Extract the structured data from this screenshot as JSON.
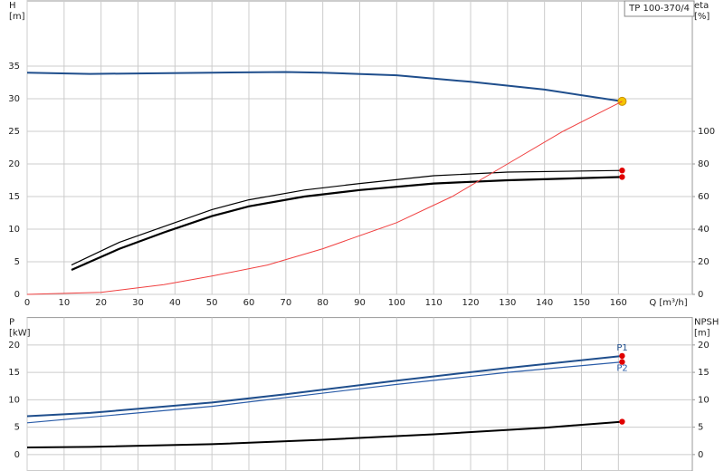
{
  "chart_data": [
    {
      "type": "line",
      "title": "TP 100-370/4",
      "xlabel": "Q [m³/h]",
      "ylabel": [
        "H",
        "[m]"
      ],
      "y2label": [
        "eta",
        "[%]"
      ],
      "xlim": [
        0,
        180
      ],
      "xticks": [
        0,
        10,
        20,
        30,
        40,
        50,
        60,
        70,
        80,
        90,
        100,
        110,
        120,
        130,
        140,
        150,
        160
      ],
      "ylim": [
        0,
        45
      ],
      "yticks": [
        0,
        5,
        10,
        15,
        20,
        25,
        30,
        35
      ],
      "y2lim": [
        0,
        180
      ],
      "y2ticks": [
        0,
        20,
        40,
        60,
        80,
        100
      ],
      "grid": true,
      "series": [
        {
          "color": "#1f4e8c",
          "width": 2,
          "marker": "#f5c400",
          "x": [
            0,
            17,
            50,
            70,
            80,
            100,
            120,
            140,
            161
          ],
          "values": [
            34,
            33.8,
            34.0,
            34.1,
            34.0,
            33.6,
            32.6,
            31.4,
            29.6
          ]
        },
        {
          "color": "#000000",
          "width": 1.2,
          "marker": "#e00000",
          "axis": "y2",
          "x": [
            12,
            25,
            40,
            50,
            60,
            75,
            90,
            110,
            130,
            161
          ],
          "values": [
            18,
            32,
            44,
            52,
            58,
            64,
            68,
            72.8,
            75,
            76
          ]
        },
        {
          "color": "#000000",
          "width": 2.2,
          "marker": "#e00000",
          "axis": "y2",
          "x": [
            12,
            17,
            25,
            37,
            50,
            60,
            75,
            90,
            110,
            130,
            161
          ],
          "values": [
            15,
            20,
            28,
            38,
            48,
            54,
            60,
            64,
            68,
            70,
            72
          ]
        },
        {
          "color": "#f04040",
          "width": 1,
          "x": [
            0,
            20,
            37,
            50,
            65,
            80,
            100,
            115,
            130,
            145,
            161
          ],
          "values": [
            0,
            0.3,
            1.5,
            2.8,
            4.5,
            7,
            11,
            15,
            20,
            25,
            29.6
          ]
        }
      ]
    },
    {
      "type": "line",
      "ylabel": [
        "P",
        "[kW]"
      ],
      "y2label": [
        "NPSH",
        "[m]"
      ],
      "xlim": [
        0,
        180
      ],
      "xticks": [
        0,
        10,
        20,
        30,
        40,
        50,
        60,
        70,
        80,
        90,
        100,
        110,
        120,
        130,
        140,
        150,
        160
      ],
      "xtick_labels": false,
      "ylim": [
        -3,
        25
      ],
      "yticks": [
        0,
        5,
        10,
        15,
        20
      ],
      "y2lim": [
        -3,
        25
      ],
      "y2ticks": [
        0,
        5,
        10,
        15,
        20
      ],
      "grid": true,
      "series": [
        {
          "name": "P1",
          "color": "#1f4e8c",
          "width": 2,
          "marker": "#e00000",
          "x": [
            0,
            17,
            50,
            70,
            100,
            130,
            161
          ],
          "values": [
            7,
            7.6,
            9.5,
            11,
            13.5,
            15.8,
            18
          ]
        },
        {
          "name": "P2",
          "color": "#2a5ca8",
          "width": 1.2,
          "marker": "#e00000",
          "x": [
            0,
            50,
            100,
            130,
            161
          ],
          "values": [
            5.8,
            8.8,
            12.8,
            15,
            16.9
          ]
        },
        {
          "color": "#000000",
          "width": 2,
          "marker": "#e00000",
          "axis": "y2",
          "x": [
            0,
            17,
            50,
            80,
            110,
            140,
            161
          ],
          "values": [
            1.3,
            1.4,
            1.9,
            2.7,
            3.7,
            4.9,
            6
          ]
        }
      ]
    }
  ]
}
